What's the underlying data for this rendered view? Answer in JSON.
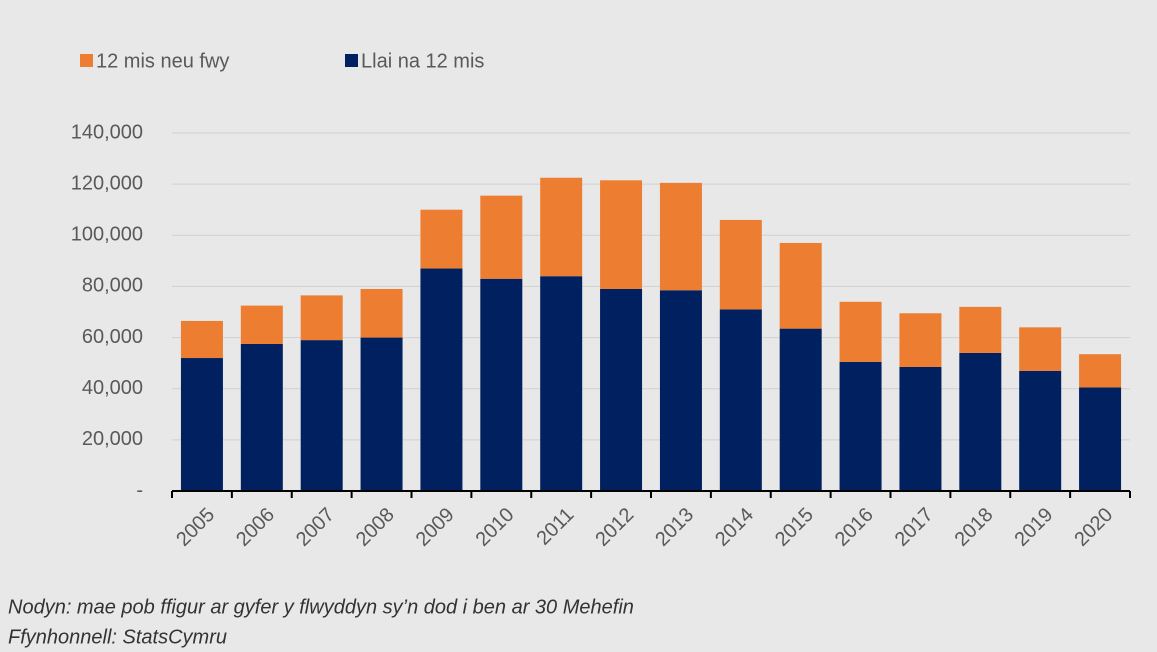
{
  "chart_data": {
    "type": "stacked_bar",
    "categories": [
      "2005",
      "2006",
      "2007",
      "2008",
      "2009",
      "2010",
      "2011",
      "2012",
      "2013",
      "2014",
      "2015",
      "2016",
      "2017",
      "2018",
      "2019",
      "2020"
    ],
    "series": [
      {
        "name": "12 mis neu fwy",
        "color": "#ed7d31",
        "values": [
          14500,
          15000,
          17500,
          19000,
          23000,
          32500,
          38500,
          42500,
          42000,
          35000,
          33500,
          23500,
          21000,
          18000,
          17000,
          13000
        ]
      },
      {
        "name": "Llai na 12 mis",
        "color": "#002060",
        "values": [
          52000,
          57500,
          59000,
          60000,
          87000,
          83000,
          84000,
          79000,
          78500,
          71000,
          63500,
          50500,
          48500,
          54000,
          47000,
          40500
        ]
      }
    ],
    "ylim": [
      0,
      140000
    ],
    "yticks": [
      {
        "value": 0,
        "label": "-"
      },
      {
        "value": 20000,
        "label": "20,000"
      },
      {
        "value": 40000,
        "label": "40,000"
      },
      {
        "value": 60000,
        "label": "60,000"
      },
      {
        "value": 80000,
        "label": "80,000"
      },
      {
        "value": 100000,
        "label": "100,000"
      },
      {
        "value": 120000,
        "label": "120,000"
      },
      {
        "value": 140000,
        "label": "140,000"
      }
    ],
    "grid": true,
    "legend": "top",
    "notes": [
      "Nodyn: mae pob ffigur ar gyfer y flwyddyn sy’n dod i ben ar 30 Mehefin",
      "Ffynhonnell: StatsCymru"
    ]
  }
}
